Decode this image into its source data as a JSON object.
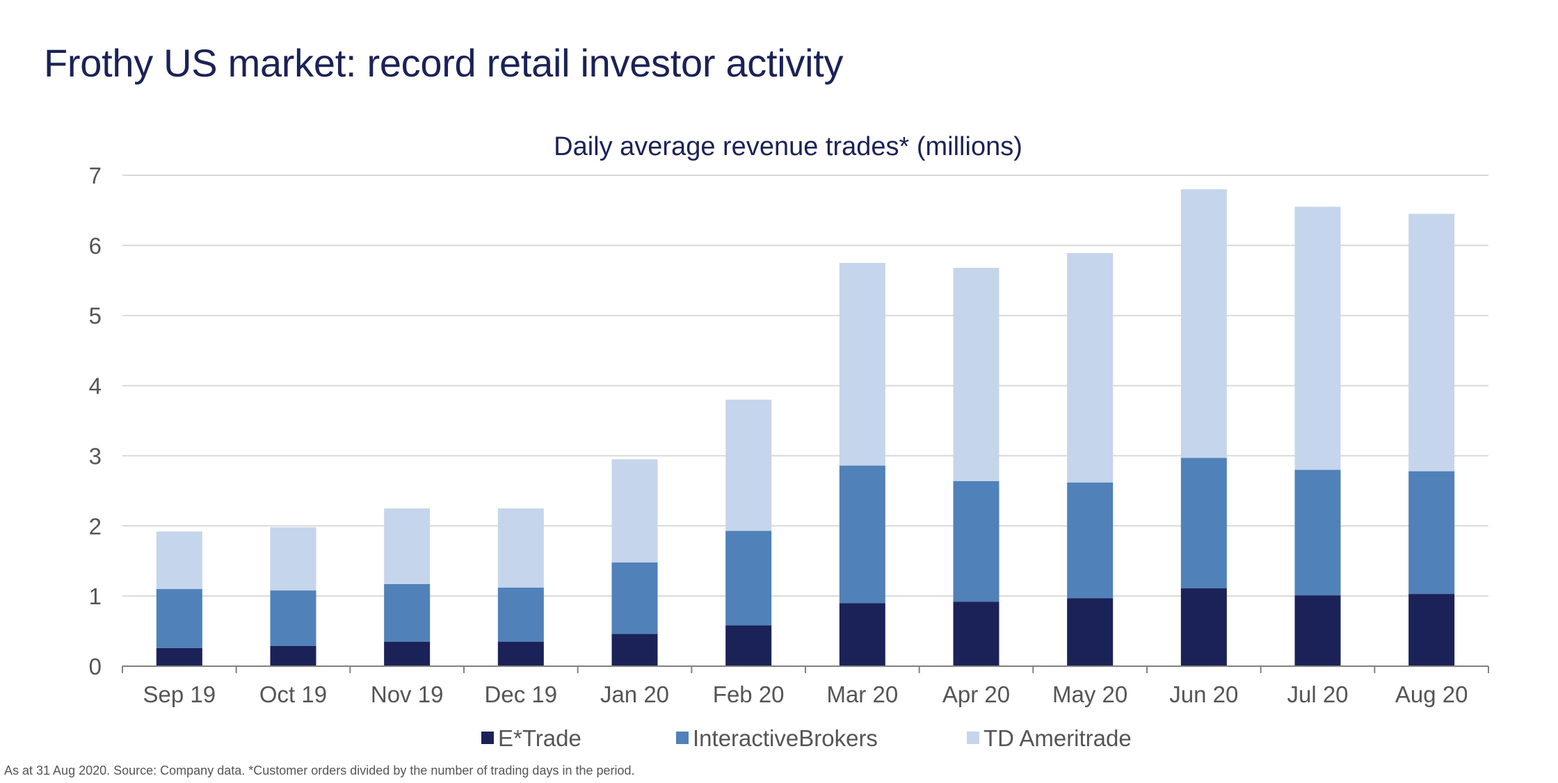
{
  "page": {
    "title": "Frothy US market: record retail investor activity",
    "footnote": "As at 31 Aug 2020. Source: Company data. *Customer orders divided by the number of trading days in the period."
  },
  "chart_data": {
    "type": "bar",
    "stacked": true,
    "title": "Daily average revenue trades* (millions)",
    "xlabel": "",
    "ylabel": "",
    "ylim": [
      0,
      7
    ],
    "yticks": [
      0,
      1,
      2,
      3,
      4,
      5,
      6,
      7
    ],
    "grid": true,
    "legend_position": "bottom",
    "categories": [
      "Sep 19",
      "Oct 19",
      "Nov 19",
      "Dec 19",
      "Jan 20",
      "Feb 20",
      "Mar 20",
      "Apr 20",
      "May 20",
      "Jun 20",
      "Jul 20",
      "Aug 20"
    ],
    "series": [
      {
        "name": "E*Trade",
        "color": "#1b2257",
        "values": [
          0.26,
          0.29,
          0.35,
          0.35,
          0.46,
          0.58,
          0.9,
          0.92,
          0.97,
          1.11,
          1.01,
          1.03
        ]
      },
      {
        "name": "InteractiveBrokers",
        "color": "#5081b9",
        "values": [
          0.84,
          0.79,
          0.82,
          0.77,
          1.02,
          1.35,
          1.96,
          1.72,
          1.65,
          1.86,
          1.79,
          1.75
        ]
      },
      {
        "name": "TD Ameritrade",
        "color": "#c5d5eb",
        "values": [
          0.82,
          0.9,
          1.08,
          1.13,
          1.47,
          1.87,
          2.89,
          3.04,
          3.27,
          3.83,
          3.75,
          3.67
        ]
      }
    ]
  }
}
